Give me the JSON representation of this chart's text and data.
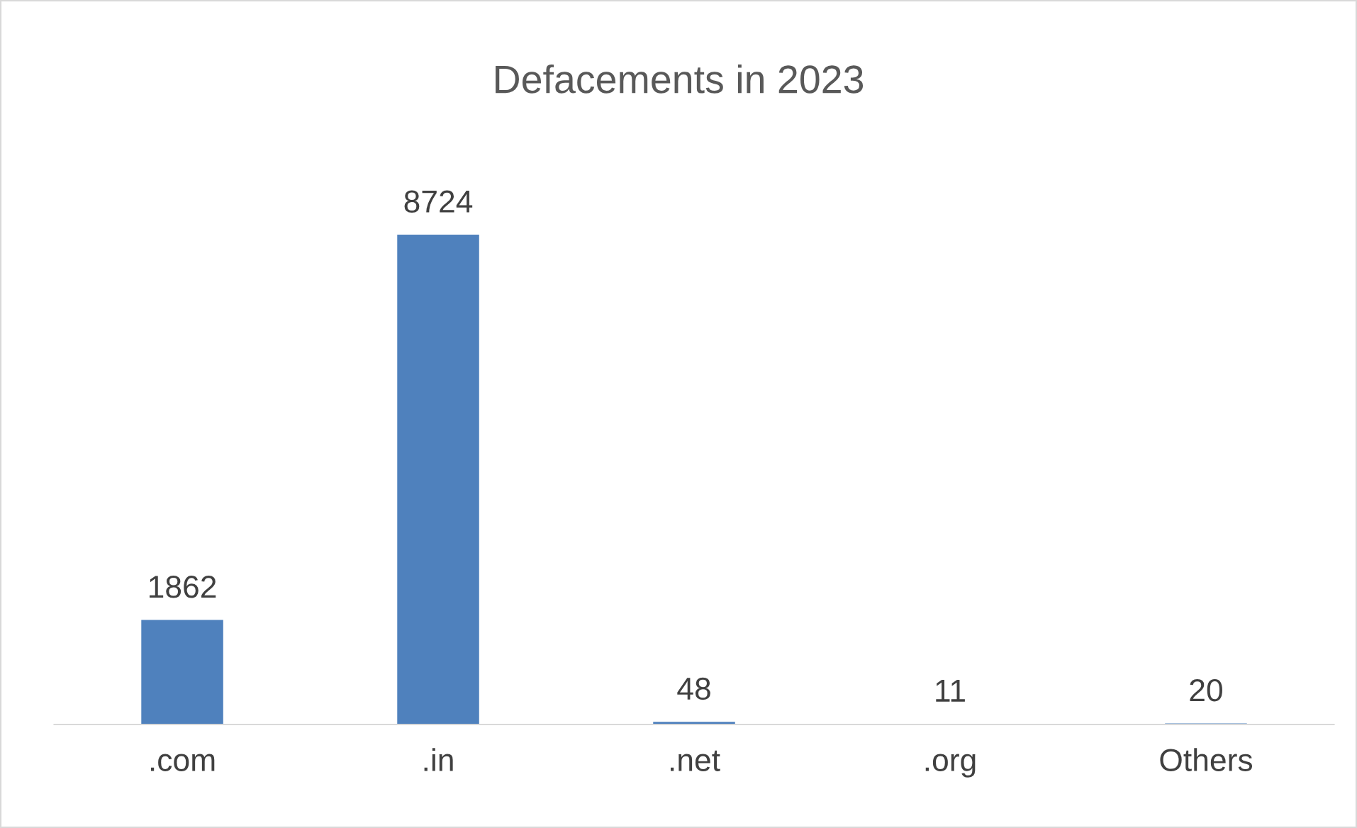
{
  "chart_data": {
    "type": "bar",
    "title": "Defacements in 2023",
    "categories": [
      ".com",
      ".in",
      ".net",
      ".org",
      "Others"
    ],
    "values": [
      1862,
      8724,
      48,
      11,
      20
    ],
    "color": "#4f81bd",
    "data_labels": true,
    "grid": false,
    "legend": false
  }
}
